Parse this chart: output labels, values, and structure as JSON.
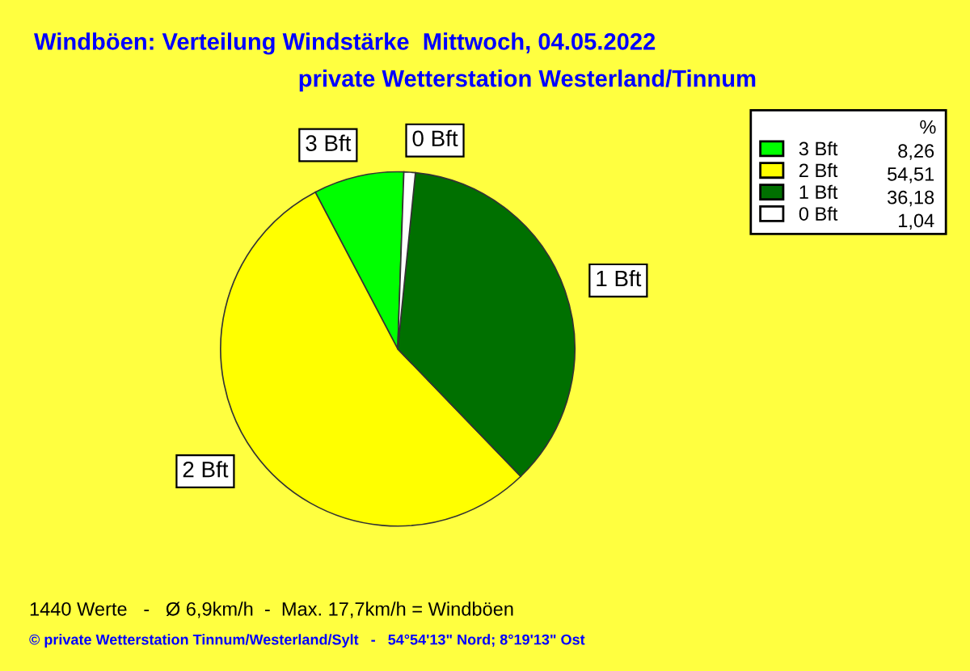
{
  "chart_data": {
    "type": "pie",
    "title": "Windböen: Verteilung Windstärke  Mittwoch, 04.05.2022",
    "subtitle": "private Wetterstation Westerland/Tinnum",
    "categories": [
      "3 Bft",
      "2 Bft",
      "1 Bft",
      "0 Bft"
    ],
    "values": [
      8.26,
      54.51,
      36.18,
      1.04
    ],
    "value_labels": [
      "8,26",
      "54,51",
      "36,18",
      "1,04"
    ],
    "colors": [
      "#00ff00",
      "#ffff00",
      "#007000",
      "#ffffff"
    ],
    "legend": "top right",
    "legend_title": "%",
    "annotations": [
      "1440 Werte   -   Ø 6,9km/h  -  Max. 17,7km/h = Windböen",
      "© private Wetterstation Tinnum/Westerland/Sylt   -   54°54'13\" Nord; 8°19'13\" Ost"
    ]
  }
}
